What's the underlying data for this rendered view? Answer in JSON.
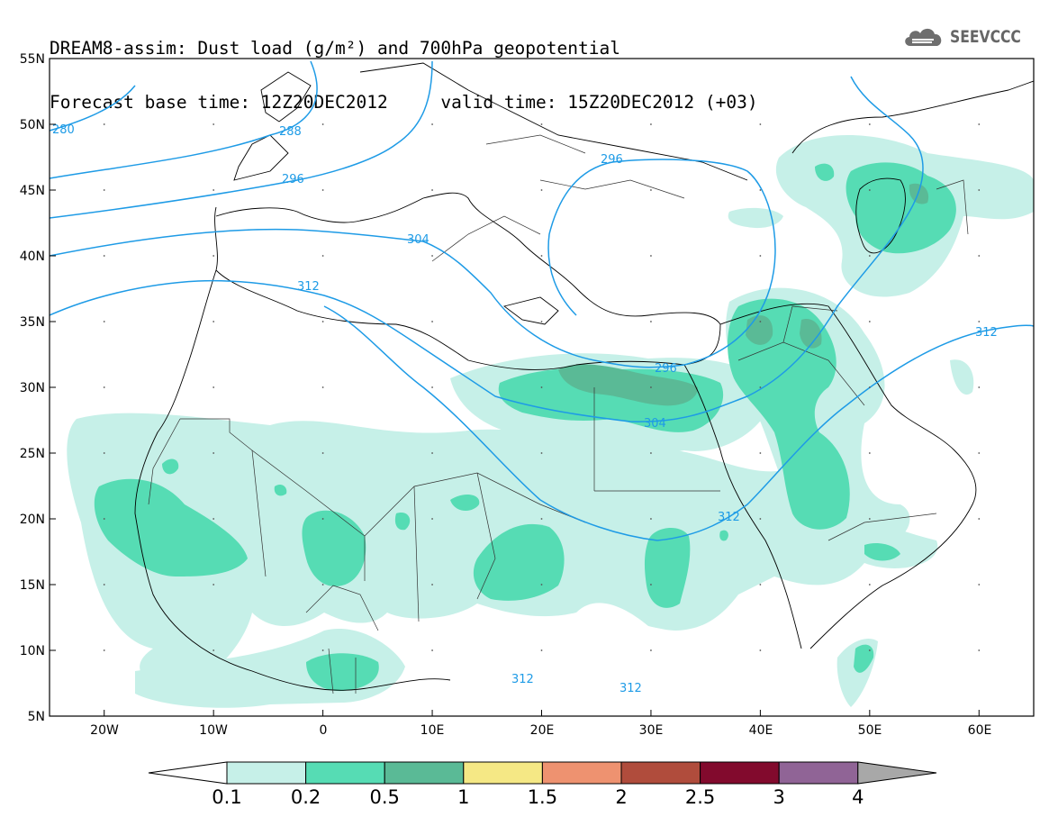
{
  "header": {
    "line1": "DREAM8-assim: Dust load (g/m²) and 700hPa geopotential",
    "line2_base": "Forecast base time: 12Z20DEC2012",
    "line2_valid": "valid time: 15Z20DEC2012 (+03)"
  },
  "logo": {
    "text": "SEEVCCC",
    "icon": "cloud-icon"
  },
  "map": {
    "lon_range": [
      -25,
      65
    ],
    "lat_range": [
      5,
      55
    ],
    "lat_ticks": [
      "55N",
      "50N",
      "45N",
      "40N",
      "35N",
      "30N",
      "25N",
      "20N",
      "15N",
      "10N",
      "5N"
    ],
    "lon_ticks": [
      "20W",
      "10W",
      "0",
      "10E",
      "20E",
      "30E",
      "40E",
      "50E",
      "60E"
    ],
    "contour_color": "#1e9be6",
    "contour_labels": [
      "280",
      "288",
      "296",
      "304",
      "312",
      "296",
      "296",
      "304",
      "312",
      "312",
      "312",
      "312"
    ]
  },
  "colorbar": {
    "labels": [
      "0.1",
      "0.2",
      "0.5",
      "1",
      "1.5",
      "2",
      "2.5",
      "3",
      "4"
    ],
    "colors": [
      "#c6f0e8",
      "#56dcb4",
      "#5aba96",
      "#f5e885",
      "#ee9270",
      "#b04c3c",
      "#820a2d",
      "#906496"
    ],
    "under_color": "#ffffff",
    "over_color": "#a8a8a8"
  }
}
